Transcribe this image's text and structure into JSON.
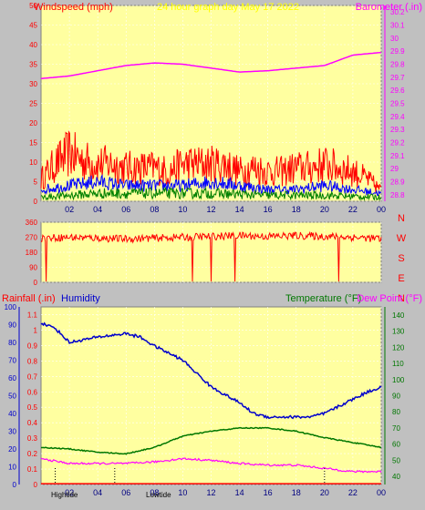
{
  "header": {
    "title": "24 hour graph day   May 17 2022",
    "left_label": "Windspeed (mph)",
    "right_label": "Barometer (.in)"
  },
  "labels": {
    "rainfall": "Rainfall (.in)",
    "humidity": "Humidity",
    "temperature": "Temperature (°F)",
    "dewpoint": "Dew Point (°F)",
    "hightide": "Hightide",
    "lowtide": "Lowtide"
  },
  "colors": {
    "plot_bg": "#ffffa0",
    "wind": "#ff0000",
    "barometer": "#ff00ff",
    "humidity": "#0000cc",
    "temperature": "#007700",
    "dewpoint": "#ff00ff",
    "rain": "#ff0000"
  },
  "chart_data": [
    {
      "type": "line",
      "name": "wind-barometer",
      "x_ticks": [
        "02",
        "04",
        "06",
        "08",
        "10",
        "12",
        "14",
        "16",
        "18",
        "20",
        "22",
        "00"
      ],
      "y_left_ticks": [
        "0",
        "5",
        "10",
        "15",
        "20",
        "25",
        "30",
        "35",
        "40",
        "45",
        "50"
      ],
      "y_left_range": [
        0,
        50
      ],
      "y_right_ticks": [
        "28.8",
        "28.9",
        "29",
        "29.1",
        "29.2",
        "29.3",
        "29.4",
        "29.5",
        "29.6",
        "29.7",
        "29.8",
        "29.9",
        "30",
        "30.1",
        "30.2"
      ],
      "y_right_range": [
        28.75,
        30.25
      ],
      "barometer": {
        "hours": [
          0,
          2,
          4,
          6,
          8,
          10,
          12,
          14,
          16,
          18,
          20,
          22,
          24
        ],
        "values": [
          29.69,
          29.71,
          29.75,
          29.79,
          29.81,
          29.8,
          29.77,
          29.74,
          29.75,
          29.77,
          29.79,
          29.87,
          29.89
        ]
      },
      "wind_gust": {
        "hours": [
          0,
          1,
          2,
          3,
          4,
          5,
          6,
          7,
          8,
          9,
          10,
          11,
          12,
          13,
          14,
          15,
          16,
          17,
          18,
          19,
          20,
          21,
          22,
          23,
          24
        ],
        "values": [
          6,
          10,
          13,
          11,
          10,
          10,
          9,
          9,
          9,
          8,
          10,
          10,
          10,
          10,
          8,
          9,
          8,
          8,
          9,
          9,
          10,
          9,
          8,
          6,
          3
        ]
      },
      "wind_avg": {
        "hours": [
          0,
          2,
          4,
          6,
          8,
          10,
          12,
          14,
          16,
          18,
          20,
          22,
          24
        ],
        "values": [
          3,
          4,
          5,
          4,
          4,
          4,
          5,
          4,
          3,
          3,
          4,
          3,
          2
        ]
      },
      "wind_low": {
        "hours": [
          0,
          4,
          8,
          12,
          16,
          20,
          24
        ],
        "values": [
          1,
          2,
          2,
          2,
          1.5,
          1.5,
          1
        ]
      }
    },
    {
      "type": "line",
      "name": "wind-direction",
      "y_ticks": [
        "0",
        "90",
        "180",
        "270",
        "360"
      ],
      "y_range": [
        0,
        360
      ],
      "compass": [
        "N",
        "W",
        "S",
        "E",
        "N"
      ],
      "hours": [
        0,
        2,
        4,
        6,
        8,
        10,
        12,
        14,
        16,
        18,
        20,
        22,
        24
      ],
      "values": [
        265,
        270,
        265,
        260,
        265,
        270,
        275,
        280,
        275,
        280,
        275,
        270,
        260
      ]
    },
    {
      "type": "line",
      "name": "rain-humidity-temperature",
      "x_ticks": [
        "02",
        "04",
        "06",
        "08",
        "10",
        "12",
        "14",
        "16",
        "18",
        "20",
        "22",
        "00"
      ],
      "y_humidity_ticks": [
        "0",
        "10",
        "20",
        "30",
        "40",
        "50",
        "60",
        "70",
        "80",
        "90",
        "100"
      ],
      "y_humidity_range": [
        0,
        100
      ],
      "y_rain_ticks": [
        "0",
        "0.1",
        "0.2",
        "0.3",
        "0.4",
        "0.5",
        "0.6",
        "0.7",
        "0.8",
        "0.9",
        "1",
        "1.1"
      ],
      "y_rain_range": [
        0,
        1.15
      ],
      "y_temp_ticks": [
        "40",
        "50",
        "60",
        "70",
        "80",
        "90",
        "100",
        "110",
        "120",
        "130",
        "140"
      ],
      "y_temp_range": [
        35,
        145
      ],
      "humidity": {
        "hours": [
          0,
          1,
          2,
          4,
          6,
          7,
          8,
          10,
          12,
          14,
          15,
          16,
          17,
          18,
          19,
          20,
          21,
          22,
          23,
          24
        ],
        "values": [
          91,
          88,
          80,
          83,
          85,
          83,
          78,
          70,
          55,
          46,
          40,
          38,
          38,
          38,
          38,
          40,
          44,
          48,
          52,
          55
        ]
      },
      "temperature": {
        "hours": [
          0,
          2,
          4,
          6,
          8,
          10,
          12,
          14,
          16,
          18,
          20,
          22,
          24
        ],
        "values": [
          58,
          57,
          55,
          54,
          58,
          65,
          68,
          70,
          70,
          68,
          64,
          61,
          58
        ]
      },
      "dewpoint": {
        "hours": [
          0,
          2,
          4,
          6,
          8,
          10,
          12,
          14,
          16,
          18,
          20,
          22,
          24
        ],
        "values": [
          51,
          48,
          48,
          48,
          49,
          51,
          50,
          48,
          47,
          47,
          45,
          43,
          43
        ]
      }
    }
  ]
}
